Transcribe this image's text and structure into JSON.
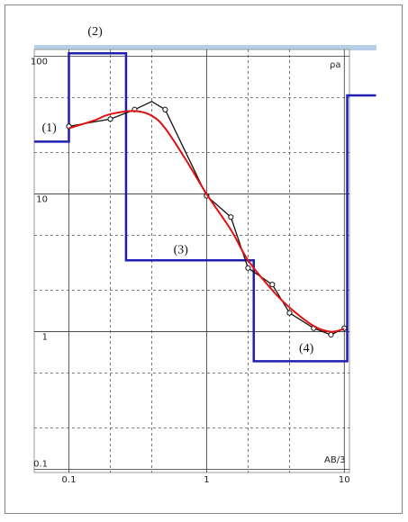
{
  "chart_data": {
    "type": "line",
    "logx": true,
    "logy": true,
    "xlim": [
      0.056,
      10.9
    ],
    "ylim": [
      0.095,
      112
    ],
    "xticks": [
      0.1,
      1,
      10
    ],
    "yticks": [
      0.1,
      1,
      10,
      100
    ],
    "xminor": [
      0.2,
      0.4,
      2,
      4
    ],
    "yminor": [
      0.2,
      0.5,
      2,
      5,
      20,
      50
    ],
    "x_label": "AB/3",
    "y_label": "ρa",
    "series": [
      {
        "color": "#1f1fb4",
        "style": "step",
        "x": [
          0.056,
          0.1,
          0.1,
          0.26,
          0.26,
          2.2,
          2.2,
          10.5,
          10.5,
          17
        ],
        "values": [
          24,
          24,
          105,
          105,
          3.3,
          3.3,
          0.61,
          0.61,
          52,
          52
        ]
      },
      {
        "color": "#111111",
        "style": "points",
        "x": [
          0.1,
          0.2,
          0.3,
          0.4,
          0.5,
          1,
          1.5,
          2,
          3,
          4,
          6,
          8,
          10
        ],
        "values": [
          31,
          35,
          41,
          47,
          41,
          9.7,
          6.8,
          2.9,
          2.2,
          1.37,
          1.06,
          0.95,
          1.06
        ]
      },
      {
        "color": "#e01010",
        "style": "smooth",
        "x": [
          0.1,
          0.15,
          0.2,
          0.3,
          0.4,
          0.5,
          0.7,
          1,
          1.5,
          2,
          3,
          4,
          6,
          8,
          10
        ],
        "values": [
          30,
          34,
          38,
          40,
          37,
          30,
          18,
          10,
          5.5,
          3.3,
          2.0,
          1.5,
          1.1,
          1.0,
          1.05
        ]
      }
    ],
    "annotations": [
      {
        "text": "(1)",
        "x": 0.072,
        "y": 30
      },
      {
        "text": "(2)",
        "x": 0.155,
        "y": 150
      },
      {
        "text": "(3)",
        "x": 0.65,
        "y": 3.9
      },
      {
        "text": "(4)",
        "x": 5.3,
        "y": 0.75
      }
    ]
  }
}
